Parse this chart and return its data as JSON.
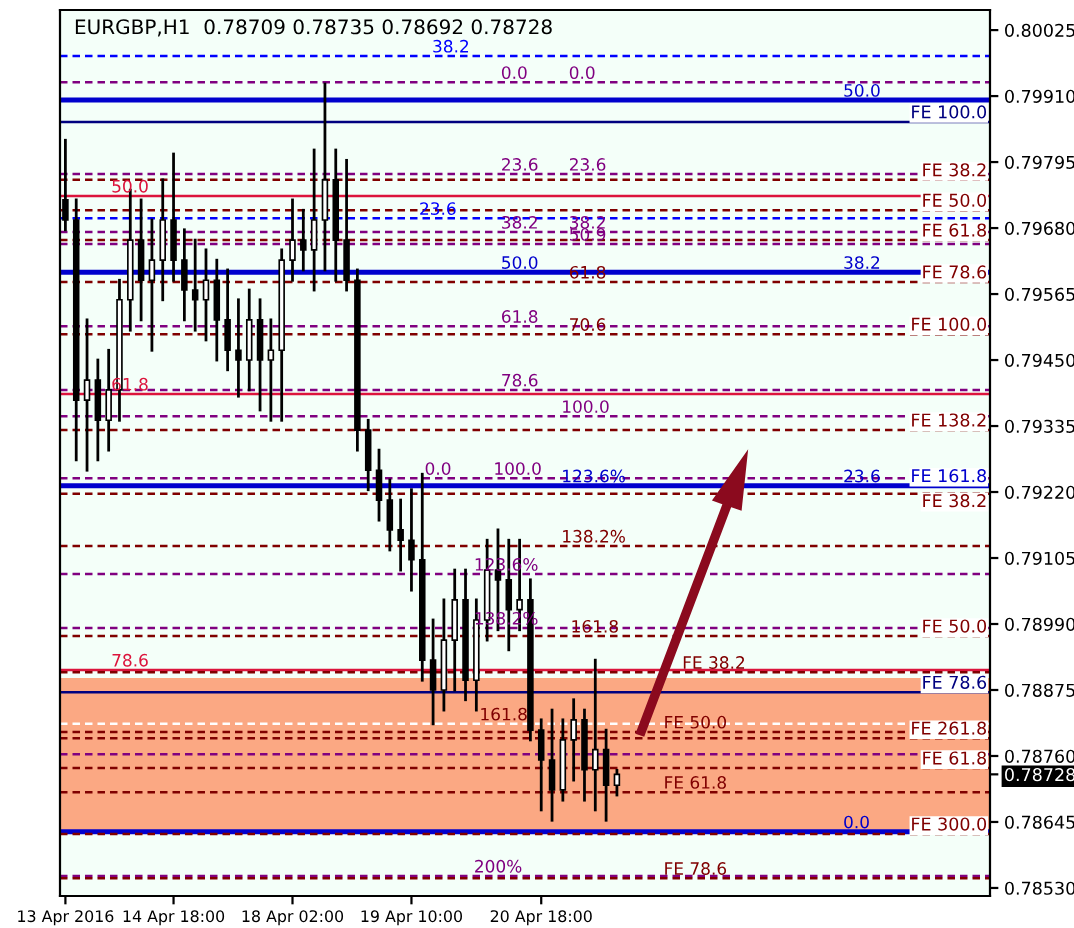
{
  "chart_data": {
    "type": "candlestick",
    "title": "EURGBP,H1  0.78709 0.78735 0.78692 0.78728",
    "categories": [
      "13 Apr 2016",
      null,
      null,
      null,
      null,
      null,
      null,
      null,
      null,
      null,
      "14 Apr 18:00",
      null,
      null,
      null,
      null,
      null,
      null,
      null,
      null,
      null,
      null,
      "18 Apr 02:00",
      null,
      null,
      null,
      null,
      null,
      null,
      null,
      null,
      null,
      null,
      "19 Apr 10:00",
      null,
      null,
      null,
      null,
      null,
      null,
      null,
      null,
      null,
      null,
      null,
      "20 Apr 18:00",
      null,
      null,
      null,
      null,
      null,
      null,
      null,
      null,
      null,
      null,
      null,
      null,
      null,
      null,
      null,
      null,
      null,
      null,
      null,
      null,
      null,
      null,
      null,
      null,
      null,
      null,
      null,
      null,
      null,
      null,
      null,
      null,
      null,
      null,
      null,
      null,
      null,
      null,
      null,
      null,
      null
    ],
    "ohlc": [
      [
        0.79729,
        0.79833,
        0.79677,
        0.79694
      ],
      [
        0.79694,
        0.79729,
        0.79276,
        0.7938
      ],
      [
        0.7938,
        0.7952,
        0.79258,
        0.79415
      ],
      [
        0.79415,
        0.7945,
        0.79276,
        0.79345
      ],
      [
        0.79345,
        0.79467,
        0.79293,
        0.79398
      ],
      [
        0.79398,
        0.79589,
        0.79345,
        0.79555
      ],
      [
        0.79555,
        0.79746,
        0.79502,
        0.79659
      ],
      [
        0.79659,
        0.79729,
        0.7952,
        0.79589
      ],
      [
        0.79589,
        0.79694,
        0.79467,
        0.79624
      ],
      [
        0.79624,
        0.79764,
        0.79555,
        0.79694
      ],
      [
        0.79694,
        0.79809,
        0.79589,
        0.79624
      ],
      [
        0.79624,
        0.79677,
        0.7952,
        0.79572
      ],
      [
        0.79572,
        0.79659,
        0.79502,
        0.79555
      ],
      [
        0.79555,
        0.79642,
        0.79485,
        0.79589
      ],
      [
        0.79589,
        0.79624,
        0.7945,
        0.7952
      ],
      [
        0.7952,
        0.79607,
        0.79433,
        0.79467
      ],
      [
        0.79467,
        0.79555,
        0.79387,
        0.7945
      ],
      [
        0.7945,
        0.79572,
        0.79398,
        0.7952
      ],
      [
        0.7952,
        0.79555,
        0.79363,
        0.7945
      ],
      [
        0.7945,
        0.7952,
        0.79345,
        0.79467
      ],
      [
        0.79467,
        0.79642,
        0.79345,
        0.79624
      ],
      [
        0.79624,
        0.79729,
        0.79589,
        0.79659
      ],
      [
        0.79659,
        0.79711,
        0.79607,
        0.79642
      ],
      [
        0.79642,
        0.79816,
        0.79572,
        0.79694
      ],
      [
        0.79694,
        0.79931,
        0.79607,
        0.79764
      ],
      [
        0.79764,
        0.79816,
        0.79589,
        0.79659
      ],
      [
        0.79659,
        0.79798,
        0.79572,
        0.79589
      ],
      [
        0.79589,
        0.79607,
        0.79293,
        0.79328
      ],
      [
        0.79328,
        0.79345,
        0.79224,
        0.79258
      ],
      [
        0.79258,
        0.79293,
        0.79171,
        0.79206
      ],
      [
        0.79206,
        0.79241,
        0.79119,
        0.79154
      ],
      [
        0.79154,
        0.79206,
        0.79084,
        0.79136
      ],
      [
        0.79136,
        0.79224,
        0.79049,
        0.79102
      ],
      [
        0.79102,
        0.79251,
        0.78892,
        0.78927
      ],
      [
        0.78927,
        0.78997,
        0.78816,
        0.78875
      ],
      [
        0.78875,
        0.79032,
        0.7884,
        0.78962
      ],
      [
        0.78962,
        0.79084,
        0.78875,
        0.79032
      ],
      [
        0.79032,
        0.79084,
        0.78858,
        0.78892
      ],
      [
        0.78892,
        0.79032,
        0.7884,
        0.78997
      ],
      [
        0.78997,
        0.79136,
        0.78962,
        0.79084
      ],
      [
        0.79084,
        0.79154,
        0.7898,
        0.79067
      ],
      [
        0.79067,
        0.79136,
        0.78945,
        0.79015
      ],
      [
        0.79015,
        0.79136,
        0.7898,
        0.79032
      ],
      [
        0.79032,
        0.79067,
        0.78788,
        0.78805
      ],
      [
        0.78805,
        0.78823,
        0.78666,
        0.78753
      ],
      [
        0.78753,
        0.7884,
        0.78648,
        0.78701
      ],
      [
        0.78701,
        0.78823,
        0.78683,
        0.78788
      ],
      [
        0.78788,
        0.78858,
        0.78718,
        0.78823
      ],
      [
        0.78823,
        0.7884,
        0.78683,
        0.78736
      ],
      [
        0.78736,
        0.78927,
        0.78666,
        0.78771
      ],
      [
        0.78771,
        0.78805,
        0.78648,
        0.78709
      ],
      [
        0.78709,
        0.78735,
        0.78692,
        0.78728
      ],
      null,
      null,
      null,
      null,
      null,
      null,
      null,
      null,
      null,
      null,
      null,
      null,
      null,
      null,
      null,
      null,
      null,
      null,
      null,
      null,
      null,
      null,
      null,
      null,
      null,
      null,
      null,
      null,
      null,
      null,
      null,
      null,
      null,
      null
    ],
    "ylim": [
      0.78516,
      0.8006
    ],
    "yticks": [
      0.80025,
      {
        "value": 0.7991,
        "label": "0.79910"
      },
      0.79795,
      {
        "value": 0.7968,
        "label": "0.79680"
      },
      0.79565,
      {
        "value": 0.7945,
        "label": "0.79450"
      },
      0.79335,
      {
        "value": 0.7922,
        "label": "0.79220"
      },
      0.79105,
      {
        "value": 0.7899,
        "label": "0.78990"
      },
      0.78875,
      {
        "value": 0.7876,
        "label": "0.78760"
      },
      0.78645,
      0.78728,
      {
        "value": 0.7853,
        "label": "0.78530"
      }
    ],
    "bands": [
      {
        "axis": "y",
        "from": 0.78624,
        "to": 0.78896,
        "color": "#fba883"
      }
    ],
    "ref_lines": [
      {
        "axis": "y",
        "value": 0.7998,
        "color": "#0000ff",
        "line_style": "dashed"
      },
      {
        "axis": "y",
        "value": 0.79934,
        "color": "#800080",
        "line_style": "dashed"
      },
      {
        "axis": "y",
        "value": 0.79903,
        "color": "#0000cd",
        "line_style": "solid"
      },
      {
        "axis": "y",
        "value": 0.79865,
        "color": "#000080",
        "line_style": "solid",
        "label": "FE 100.0"
      },
      {
        "axis": "y",
        "value": 0.79774,
        "color": "#800080",
        "line_style": "dashed"
      },
      {
        "axis": "y",
        "value": 0.79764,
        "color": "#800000",
        "line_style": "dashed",
        "label": "FE 38.2"
      },
      {
        "axis": "y",
        "value": 0.79736,
        "color": "#dc143c",
        "line_style": "solid"
      },
      {
        "axis": "y",
        "value": 0.79711,
        "color": "#800000",
        "line_style": "dashed",
        "label": "FE 50.0"
      },
      {
        "axis": "y",
        "value": 0.79697,
        "color": "#0000ff",
        "line_style": "dashed"
      },
      {
        "axis": "y",
        "value": 0.79673,
        "color": "#800080",
        "line_style": "dashed"
      },
      {
        "axis": "y",
        "value": 0.79659,
        "color": "#800000",
        "line_style": "dashed",
        "label": "FE 61.8"
      },
      {
        "axis": "y",
        "value": 0.79652,
        "color": "#800080",
        "line_style": "dashed"
      },
      {
        "axis": "y",
        "value": 0.79603,
        "color": "#0000cd",
        "line_style": "solid"
      },
      {
        "axis": "y",
        "value": 0.79586,
        "color": "#800000",
        "line_style": "dashed",
        "label": "FE 78.6"
      },
      {
        "axis": "y",
        "value": 0.79509,
        "color": "#800080",
        "line_style": "dashed"
      },
      {
        "axis": "y",
        "value": 0.79495,
        "color": "#800000",
        "line_style": "dashed",
        "label": "FE 100.0"
      },
      {
        "axis": "y",
        "value": 0.79398,
        "color": "#800080",
        "line_style": "dashed"
      },
      {
        "axis": "y",
        "value": 0.79391,
        "color": "#dc143c",
        "line_style": "solid"
      },
      {
        "axis": "y",
        "value": 0.79352,
        "color": "#800080",
        "line_style": "dashed"
      },
      {
        "axis": "y",
        "value": 0.79328,
        "color": "#800000",
        "line_style": "dashed",
        "label": "FE 138.2"
      },
      {
        "axis": "y",
        "value": 0.79244,
        "color": "#800080",
        "line_style": "dashed"
      },
      {
        "axis": "y",
        "value": 0.79231,
        "color": "#0000cd",
        "line_style": "solid",
        "label": "FE 161.8"
      },
      {
        "axis": "y",
        "value": 0.79217,
        "color": "#800000",
        "line_style": "dashed",
        "label": "FE 38.2"
      },
      {
        "axis": "y",
        "value": 0.79126,
        "color": "#800000",
        "line_style": "dashed"
      },
      {
        "axis": "y",
        "value": 0.79077,
        "color": "#800080",
        "line_style": "dashed"
      },
      {
        "axis": "y",
        "value": 0.78983,
        "color": "#800080",
        "line_style": "dashed"
      },
      {
        "axis": "y",
        "value": 0.78969,
        "color": "#800000",
        "line_style": "dashed",
        "label": "FE 50.0"
      },
      {
        "axis": "y",
        "value": 0.7891,
        "color": "#dc143c",
        "line_style": "solid"
      },
      {
        "axis": "y",
        "value": 0.78906,
        "color": "#800000",
        "line_style": "dashed"
      },
      {
        "axis": "y",
        "value": 0.78871,
        "color": "#000080",
        "line_style": "solid",
        "label": "FE 78.6"
      },
      {
        "axis": "y",
        "value": 0.78816,
        "color": "#ffffff",
        "line_style": "dashed"
      },
      {
        "axis": "y",
        "value": 0.78802,
        "color": "#800000",
        "line_style": "dashed"
      },
      {
        "axis": "y",
        "value": 0.78791,
        "color": "#800000",
        "line_style": "dashed",
        "label": "FE 261.8"
      },
      {
        "axis": "y",
        "value": 0.78763,
        "color": "#800080",
        "line_style": "dashed"
      },
      {
        "axis": "y",
        "value": 0.78739,
        "color": "#800000",
        "line_style": "dashed",
        "label": "FE 61.8"
      },
      {
        "axis": "y",
        "value": 0.78697,
        "color": "#800000",
        "line_style": "dashed"
      },
      {
        "axis": "y",
        "value": 0.78628,
        "color": "#0000cd",
        "line_style": "solid"
      },
      {
        "axis": "y",
        "value": 0.78624,
        "color": "#800000",
        "line_style": "dashed",
        "label": "FE 300.0"
      },
      {
        "axis": "y",
        "value": 0.78551,
        "color": "#800080",
        "line_style": "dashed"
      },
      {
        "axis": "y",
        "value": 0.78547,
        "color": "#800000",
        "line_style": "dashed"
      }
    ],
    "annotations": [
      {
        "text": "38.2",
        "y": 0.7998
      },
      {
        "text": "0.0",
        "y": 0.79934
      },
      {
        "text": "0.0",
        "y": 0.79934
      },
      {
        "text": "50.0",
        "y": 0.79903
      },
      {
        "text": "23.6",
        "y": 0.79774
      },
      {
        "text": "23.6",
        "y": 0.79774
      },
      {
        "text": "50.0",
        "y": 0.79736
      },
      {
        "text": "23.6",
        "y": 0.79697
      },
      {
        "text": "38.2",
        "y": 0.79673
      },
      {
        "text": "38.2",
        "y": 0.79673
      },
      {
        "text": "50.9",
        "y": 0.79652
      },
      {
        "text": "50.0",
        "y": 0.79603
      },
      {
        "text": "38.2",
        "y": 0.79603
      },
      {
        "text": "61.8",
        "y": 0.79586
      },
      {
        "text": "61.8",
        "y": 0.79509
      },
      {
        "text": "70.6",
        "y": 0.79495
      },
      {
        "text": "78.6",
        "y": 0.79398
      },
      {
        "text": "61.8",
        "y": 0.79391
      },
      {
        "text": "100.0",
        "y": 0.79352
      },
      {
        "text": "0.0",
        "y": 0.79244
      },
      {
        "text": "100.0",
        "y": 0.79244
      },
      {
        "text": "123.6%",
        "y": 0.79231
      },
      {
        "text": "23.6",
        "y": 0.79231
      },
      {
        "text": "138.2%",
        "y": 0.79126
      },
      {
        "text": "123.6%",
        "y": 0.79077
      },
      {
        "text": "138.2%",
        "y": 0.78983
      },
      {
        "text": "161.8",
        "y": 0.78969
      },
      {
        "text": "78.6",
        "y": 0.7891
      },
      {
        "text": "FE 38.2",
        "y": 0.78906
      },
      {
        "text": "161.8",
        "y": 0.78816
      },
      {
        "text": "FE 50.0",
        "y": 0.78802
      },
      {
        "text": "FE 61.8",
        "y": 0.78697
      },
      {
        "text": "0.0",
        "y": 0.78628
      },
      {
        "text": "200%",
        "y": 0.78551
      },
      {
        "text": "FE 78.6",
        "y": 0.78547
      }
    ]
  }
}
